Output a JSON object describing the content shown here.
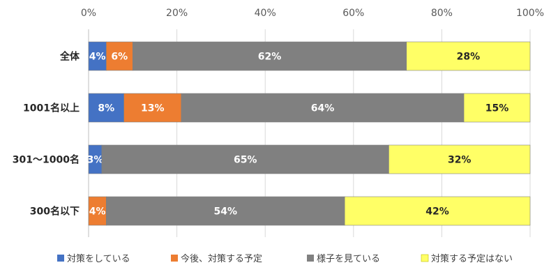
{
  "chart_data": {
    "type": "bar",
    "orientation": "horizontal",
    "stacked": true,
    "categories": [
      "全体",
      "1001名以上",
      "301～1000名",
      "300名以下"
    ],
    "series": [
      {
        "name": "対策をしている",
        "values": [
          4,
          8,
          3,
          0
        ],
        "labels": [
          "4%",
          "8%",
          "3%",
          ""
        ],
        "color": "#4472C4",
        "label_color": "#ffffff"
      },
      {
        "name": "今後、対策する予定",
        "values": [
          6,
          13,
          0,
          4
        ],
        "labels": [
          "6%",
          "13%",
          "",
          "4%"
        ],
        "color": "#ED7D31",
        "label_color": "#ffffff"
      },
      {
        "name": "様子を見ている",
        "values": [
          62,
          64,
          65,
          54
        ],
        "labels": [
          "62%",
          "64%",
          "65%",
          "54%"
        ],
        "color": "#808080",
        "label_color": "#ffffff"
      },
      {
        "name": "対策する予定はない",
        "values": [
          28,
          15,
          32,
          42
        ],
        "labels": [
          "28%",
          "15%",
          "32%",
          "42%"
        ],
        "color": "#FFFF66",
        "label_color": "#262626"
      }
    ],
    "x_ticks": [
      "0%",
      "20%",
      "40%",
      "60%",
      "80%",
      "100%"
    ],
    "xlim": [
      0,
      100
    ],
    "grid": true,
    "legend_position": "bottom"
  }
}
